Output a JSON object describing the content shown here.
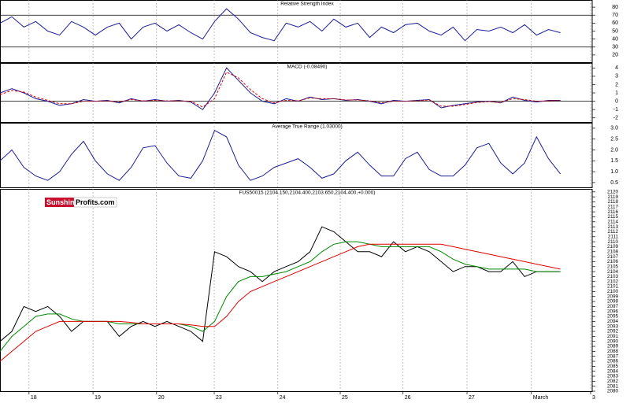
{
  "chart_data": [
    {
      "type": "line",
      "title": "Relative Strength Index",
      "x": [
        0,
        3,
        6,
        9,
        12,
        15,
        18,
        21,
        24,
        27,
        30,
        33,
        36,
        39,
        42,
        45,
        48,
        51,
        54,
        57,
        60,
        63,
        66,
        69,
        72,
        75,
        78,
        81,
        84,
        87,
        90,
        93,
        96,
        99,
        102,
        105,
        108,
        111,
        114,
        117,
        120,
        123,
        126,
        129,
        132,
        135,
        138,
        141
      ],
      "xlim": [
        0,
        149
      ],
      "ylim": [
        11,
        89
      ],
      "yticks": [
        20,
        30,
        40,
        50,
        60,
        70,
        80
      ],
      "reference_lines": [
        30,
        70
      ],
      "series": [
        {
          "color": "#1c1c96",
          "values": [
            60,
            68,
            55,
            62,
            50,
            45,
            62,
            55,
            45,
            55,
            60,
            40,
            55,
            60,
            50,
            58,
            48,
            40,
            62,
            78,
            65,
            48,
            42,
            38,
            60,
            55,
            62,
            50,
            65,
            55,
            60,
            42,
            55,
            48,
            58,
            60,
            50,
            45,
            55,
            38,
            52,
            50,
            55,
            48,
            58,
            45,
            52,
            48
          ]
        }
      ]
    },
    {
      "type": "line",
      "title": "MACD (-0.08490)",
      "x": [
        0,
        3,
        6,
        9,
        12,
        15,
        18,
        21,
        24,
        27,
        30,
        33,
        36,
        39,
        42,
        45,
        48,
        51,
        54,
        57,
        60,
        63,
        66,
        69,
        72,
        75,
        78,
        81,
        84,
        87,
        90,
        93,
        96,
        99,
        102,
        105,
        108,
        111,
        114,
        117,
        120,
        123,
        126,
        129,
        132,
        135,
        138,
        141
      ],
      "xlim": [
        0,
        149
      ],
      "ylim": [
        -2.5,
        4.6
      ],
      "yticks": [
        -2,
        -1,
        0,
        1,
        2,
        3,
        4
      ],
      "reference_lines": [
        0
      ],
      "series": [
        {
          "color": "#1c1c96",
          "values": [
            1,
            1.5,
            1,
            0.3,
            0,
            -0.5,
            -0.3,
            0.2,
            0,
            0.1,
            -0.2,
            0.3,
            0,
            0.2,
            0,
            0.1,
            -0.1,
            -1,
            1,
            4,
            2.5,
            1,
            0,
            -0.3,
            0.3,
            0,
            0.5,
            0.2,
            0.3,
            0.1,
            0.2,
            0,
            -0.3,
            0.1,
            0,
            0.1,
            0.2,
            -0.8,
            -0.5,
            -0.3,
            -0.1,
            0,
            -0.2,
            0.5,
            0.1,
            -0.1,
            0.1,
            0.1
          ]
        },
        {
          "color": "#d40000",
          "dashed": true,
          "values": [
            0.8,
            1.3,
            1.1,
            0.5,
            0.1,
            -0.3,
            -0.3,
            0,
            0,
            0.05,
            -0.1,
            0.2,
            0.05,
            0.1,
            0.05,
            0.05,
            0,
            -0.7,
            0.3,
            3.5,
            2.8,
            1.4,
            0.3,
            -0.2,
            0.1,
            0.05,
            0.4,
            0.3,
            0.3,
            0.15,
            0.15,
            0.05,
            -0.2,
            0,
            0,
            0.05,
            0.15,
            -0.6,
            -0.6,
            -0.4,
            -0.15,
            -0.05,
            -0.15,
            0.3,
            0.2,
            0,
            0.05,
            0.1
          ]
        }
      ]
    },
    {
      "type": "line",
      "title": "Average True Range (1.03000)",
      "x": [
        0,
        3,
        6,
        9,
        12,
        15,
        18,
        21,
        24,
        27,
        30,
        33,
        36,
        39,
        42,
        45,
        48,
        51,
        54,
        57,
        60,
        63,
        66,
        69,
        72,
        75,
        78,
        81,
        84,
        87,
        90,
        93,
        96,
        99,
        102,
        105,
        108,
        111,
        114,
        117,
        120,
        123,
        126,
        129,
        132,
        135,
        138,
        141
      ],
      "xlim": [
        0,
        149
      ],
      "ylim": [
        0.28,
        3.25
      ],
      "yticks": [
        0.5,
        {
          "value": 1,
          "label": "1.0"
        },
        1.5,
        {
          "value": 2,
          "label": "2.0"
        },
        2.5,
        {
          "value": 3,
          "label": "3.0"
        }
      ],
      "series": [
        {
          "color": "#1c1c96",
          "values": [
            1.5,
            2.0,
            1.2,
            0.8,
            0.6,
            1.0,
            1.8,
            2.4,
            1.5,
            0.9,
            0.6,
            1.2,
            2.1,
            2.2,
            1.4,
            0.8,
            0.7,
            1.5,
            2.9,
            2.6,
            1.3,
            0.6,
            0.8,
            1.2,
            1.4,
            1.6,
            1.2,
            0.7,
            0.9,
            1.5,
            1.9,
            1.3,
            0.8,
            0.8,
            1.6,
            1.9,
            1.1,
            0.8,
            0.8,
            1.3,
            2.1,
            2.3,
            1.4,
            0.9,
            1.4,
            2.6,
            1.6,
            0.9
          ]
        }
      ]
    },
    {
      "type": "line",
      "title": "FUS50015 (2104.150,2104.400,2103.650,2104.400,+0.000)",
      "logo": {
        "brand": "Sunshine",
        "suffix": "Profits.com"
      },
      "x": [
        0,
        3,
        6,
        9,
        12,
        15,
        18,
        21,
        24,
        27,
        30,
        33,
        36,
        39,
        42,
        45,
        48,
        51,
        54,
        57,
        60,
        63,
        66,
        69,
        72,
        75,
        78,
        81,
        84,
        87,
        90,
        93,
        96,
        99,
        102,
        105,
        108,
        111,
        114,
        117,
        120,
        123,
        126,
        129,
        132,
        135,
        138,
        141
      ],
      "xlim": [
        0,
        149
      ],
      "ylim": [
        2080,
        2120.6
      ],
      "yticks": [
        2080,
        2081,
        2082,
        2083,
        2084,
        2085,
        2086,
        2087,
        2088,
        2089,
        2090,
        2091,
        2092,
        2093,
        2094,
        2095,
        2096,
        2097,
        2098,
        2099,
        2100,
        2101,
        2102,
        2103,
        2104,
        2105,
        2106,
        2107,
        2108,
        2109,
        2110,
        2111,
        2112,
        2113,
        2114,
        2115,
        2116,
        2117,
        2118,
        2119,
        2120
      ],
      "xticks": [
        {
          "value": 7.3,
          "label": "18"
        },
        {
          "value": 23.4,
          "label": "19"
        },
        {
          "value": 39.4,
          "label": "20"
        },
        {
          "value": 53.9,
          "label": "23"
        },
        {
          "value": 69.9,
          "label": "24"
        },
        {
          "value": 85.6,
          "label": "25"
        },
        {
          "value": 101.4,
          "label": "26"
        },
        {
          "value": 117.5,
          "label": "27"
        },
        {
          "value": 133.7,
          "label": "March"
        },
        {
          "value": 148.6,
          "label": "3"
        }
      ],
      "series": [
        {
          "color": "#000000",
          "values": [
            2090,
            2092,
            2097,
            2096,
            2097,
            2095,
            2092,
            2094,
            2094,
            2094,
            2091,
            2093,
            2094,
            2093,
            2094,
            2093,
            2092,
            2090,
            2108,
            2107,
            2105,
            2104,
            2102,
            2104,
            2105,
            2106,
            2108,
            2113,
            2112,
            2110,
            2108,
            2108,
            2107,
            2110,
            2108,
            2109,
            2108,
            2106,
            2104,
            2105,
            2105,
            2104,
            2104,
            2106,
            2103,
            2104,
            2104,
            2104
          ]
        },
        {
          "color": "#008a00",
          "values": [
            2088,
            2091,
            2093,
            2095,
            2095.5,
            2095.5,
            2094.5,
            2094,
            2094,
            2094,
            2093.5,
            2093.5,
            2093.5,
            2093.5,
            2093.5,
            2093.5,
            2093,
            2092,
            2094,
            2099,
            2102,
            2103,
            2103,
            2103.5,
            2104,
            2105,
            2106,
            2108,
            2109.5,
            2110,
            2110,
            2109.5,
            2109,
            2109,
            2109,
            2109,
            2109,
            2108,
            2106.5,
            2105.5,
            2105,
            2104.5,
            2104.5,
            2104.5,
            2104.5,
            2104,
            2104,
            2104
          ]
        },
        {
          "color": "#e00000",
          "values": [
            2086,
            2088,
            2090,
            2092,
            2093,
            2094,
            2094,
            2094,
            2094,
            2094,
            2094,
            2093.8,
            2093.5,
            2093.5,
            2093.5,
            2093.5,
            2093.3,
            2093,
            2093,
            2095,
            2098,
            2100,
            2101,
            2102,
            2103,
            2104,
            2105,
            2106,
            2107,
            2108,
            2109,
            2109.5,
            2109.5,
            2109.5,
            2109.5,
            2109.5,
            2109.5,
            2109.5,
            2109,
            2108.5,
            2108,
            2107.5,
            2107,
            2106.5,
            2106,
            2105.5,
            2105,
            2104.5
          ]
        }
      ]
    }
  ]
}
